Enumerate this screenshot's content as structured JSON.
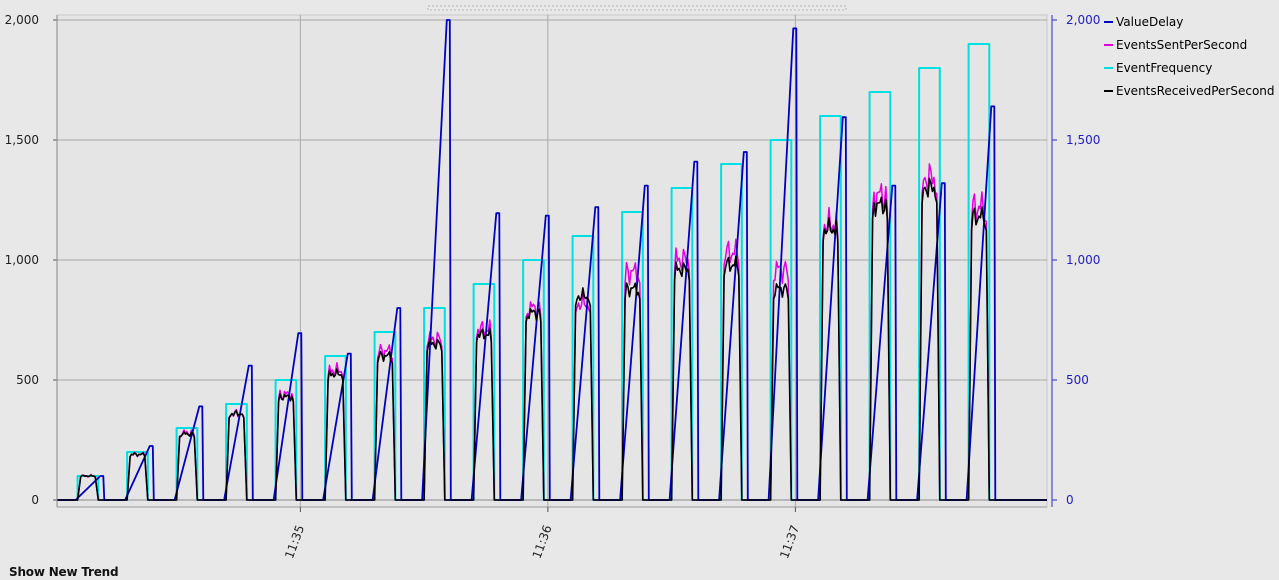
{
  "footer": {
    "show_new_trend": "Show New Trend"
  },
  "chart_data": {
    "type": "line",
    "title": "",
    "xlabel": "",
    "ylabel": "",
    "ylim": [
      0,
      2000
    ],
    "x_range": [
      "11:34:01",
      "11:38:01"
    ],
    "y_ticks": [
      "0",
      "500",
      "1,000",
      "1,500",
      "2,000"
    ],
    "y_tick_values": [
      0,
      500,
      1000,
      1500,
      2000
    ],
    "y2_ticks": [
      "0",
      "500",
      "1,000",
      "1,500",
      "2,000"
    ],
    "x_ticks": [
      "11:35",
      "11:36",
      "11:37"
    ],
    "x_tick_values": [
      "11:35:00",
      "11:36:00",
      "11:37:00"
    ],
    "grid": true,
    "legend_position": "top-right",
    "colors": {
      "ValueDelay": "#0000c0",
      "EventsSentPerSecond": "#e000e0",
      "EventFrequency": "#00e0e0",
      "EventsReceivedPerSecond": "#000000"
    },
    "bursts": [
      {
        "start": "11:34:06",
        "end": "11:34:11",
        "frequency": 100,
        "sent": 100,
        "received": 100,
        "delay_peak": 100
      },
      {
        "start": "11:34:18",
        "end": "11:34:23",
        "frequency": 200,
        "sent": 190,
        "received": 190,
        "delay_peak": 225
      },
      {
        "start": "11:34:30",
        "end": "11:34:35",
        "frequency": 300,
        "sent": 280,
        "received": 275,
        "delay_peak": 390
      },
      {
        "start": "11:34:42",
        "end": "11:34:47",
        "frequency": 400,
        "sent": 360,
        "received": 360,
        "delay_peak": 560
      },
      {
        "start": "11:34:54",
        "end": "11:34:59",
        "frequency": 500,
        "sent": 440,
        "received": 430,
        "delay_peak": 695
      },
      {
        "start": "11:35:06",
        "end": "11:35:11",
        "frequency": 600,
        "sent": 540,
        "received": 525,
        "delay_peak": 610
      },
      {
        "start": "11:35:18",
        "end": "11:35:23",
        "frequency": 700,
        "sent": 620,
        "received": 600,
        "delay_peak": 800
      },
      {
        "start": "11:35:30",
        "end": "11:35:35",
        "frequency": 800,
        "sent": 670,
        "received": 650,
        "delay_peak": 2000
      },
      {
        "start": "11:35:42",
        "end": "11:35:47",
        "frequency": 900,
        "sent": 710,
        "received": 690,
        "delay_peak": 1195
      },
      {
        "start": "11:35:54",
        "end": "11:35:59",
        "frequency": 1000,
        "sent": 800,
        "received": 780,
        "delay_peak": 1185
      },
      {
        "start": "11:36:06",
        "end": "11:36:11",
        "frequency": 1100,
        "sent": 820,
        "received": 850,
        "delay_peak": 1220
      },
      {
        "start": "11:36:18",
        "end": "11:36:23",
        "frequency": 1200,
        "sent": 950,
        "received": 880,
        "delay_peak": 1310
      },
      {
        "start": "11:36:30",
        "end": "11:36:35",
        "frequency": 1300,
        "sent": 1000,
        "received": 960,
        "delay_peak": 1410
      },
      {
        "start": "11:36:42",
        "end": "11:36:47",
        "frequency": 1400,
        "sent": 1030,
        "received": 980,
        "delay_peak": 1450
      },
      {
        "start": "11:36:54",
        "end": "11:36:59",
        "frequency": 1500,
        "sent": 960,
        "received": 880,
        "delay_peak": 1965
      },
      {
        "start": "11:37:06",
        "end": "11:37:11",
        "frequency": 1600,
        "sent": 1150,
        "received": 1130,
        "delay_peak": 1595
      },
      {
        "start": "11:37:18",
        "end": "11:37:23",
        "frequency": 1700,
        "sent": 1270,
        "received": 1230,
        "delay_peak": 1310
      },
      {
        "start": "11:37:30",
        "end": "11:37:35",
        "frequency": 1800,
        "sent": 1340,
        "received": 1300,
        "delay_peak": 1320
      },
      {
        "start": "11:37:42",
        "end": "11:37:47",
        "frequency": 1900,
        "sent": 1220,
        "received": 1180,
        "delay_peak": 1640
      }
    ],
    "series": [
      {
        "name": "ValueDelay"
      },
      {
        "name": "EventsSentPerSecond"
      },
      {
        "name": "EventFrequency"
      },
      {
        "name": "EventsReceivedPerSecond"
      }
    ]
  }
}
